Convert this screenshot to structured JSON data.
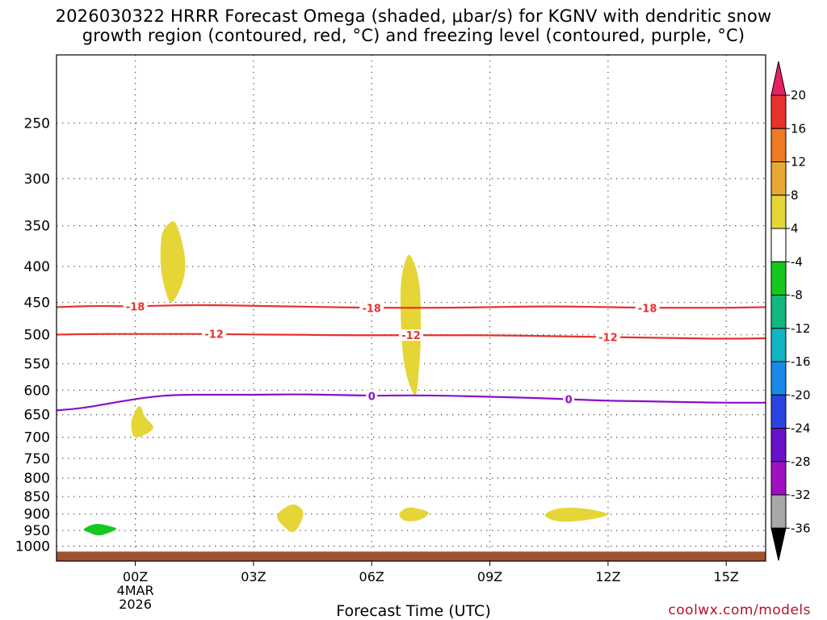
{
  "title": {
    "line1": "2026030322 HRRR Forecast Omega (shaded, μbar/s) for KGNV with dendritic snow",
    "line2": "growth region (contoured, red, °C) and freezing level (contoured, purple, °C)"
  },
  "credit": "coolwx.com/models",
  "chart_data": {
    "type": "contour-time-height",
    "title": "2026030322 HRRR Forecast Omega (shaded, μbar/s) for KGNV with dendritic snow growth region (contoured, red, °C) and freezing level (contoured, purple, °C)",
    "xlabel": "Forecast Time (UTC)",
    "ylabel": "",
    "x_range_hours_from_00Z": [
      -2,
      16
    ],
    "y_range_hpa": [
      200,
      1050
    ],
    "y_ticks": [
      250,
      300,
      350,
      400,
      450,
      500,
      550,
      600,
      650,
      700,
      750,
      800,
      850,
      900,
      950,
      1000
    ],
    "x_ticks": [
      {
        "hour": 0,
        "label": "00Z",
        "sub1": "4MAR",
        "sub2": "2026"
      },
      {
        "hour": 3,
        "label": "03Z"
      },
      {
        "hour": 6,
        "label": "06Z"
      },
      {
        "hour": 9,
        "label": "09Z"
      },
      {
        "hour": 12,
        "label": "12Z"
      },
      {
        "hour": 15,
        "label": "15Z"
      }
    ],
    "contours": [
      {
        "name": "dendritic-minus18",
        "label": "-18",
        "color": "#e8322e",
        "points": [
          [
            -2,
            457
          ],
          [
            -1,
            455
          ],
          [
            0,
            456
          ],
          [
            1,
            454
          ],
          [
            2,
            454
          ],
          [
            3,
            455
          ],
          [
            4,
            456
          ],
          [
            5,
            457
          ],
          [
            6,
            458
          ],
          [
            7,
            458
          ],
          [
            8,
            458
          ],
          [
            9,
            457
          ],
          [
            10,
            456
          ],
          [
            11,
            456
          ],
          [
            12,
            457
          ],
          [
            13,
            458
          ],
          [
            14,
            458
          ],
          [
            15,
            458
          ],
          [
            16,
            457
          ]
        ],
        "label_hours": [
          0,
          6,
          13
        ]
      },
      {
        "name": "dendritic-minus12",
        "label": "-12",
        "color": "#e8322e",
        "points": [
          [
            -2,
            500
          ],
          [
            -1,
            499
          ],
          [
            0,
            499
          ],
          [
            1,
            499
          ],
          [
            2,
            499
          ],
          [
            3,
            500
          ],
          [
            4,
            500
          ],
          [
            5,
            501
          ],
          [
            6,
            501
          ],
          [
            7,
            501
          ],
          [
            8,
            501
          ],
          [
            9,
            501
          ],
          [
            10,
            502
          ],
          [
            11,
            503
          ],
          [
            12,
            504
          ],
          [
            13,
            505
          ],
          [
            14,
            506
          ],
          [
            15,
            507
          ],
          [
            16,
            506
          ]
        ],
        "label_hours": [
          2,
          7,
          12
        ]
      },
      {
        "name": "freezing-level-0",
        "label": "0",
        "color": "#8a10c8",
        "points": [
          [
            -2,
            641
          ],
          [
            -1.3,
            636
          ],
          [
            -0.5,
            624
          ],
          [
            0.3,
            614
          ],
          [
            1,
            609
          ],
          [
            2,
            609
          ],
          [
            3,
            609
          ],
          [
            4,
            608
          ],
          [
            5,
            609
          ],
          [
            6,
            611
          ],
          [
            7,
            610
          ],
          [
            8,
            611
          ],
          [
            9,
            613
          ],
          [
            10,
            615
          ],
          [
            11,
            618
          ],
          [
            12,
            621
          ],
          [
            13,
            622
          ],
          [
            14,
            624
          ],
          [
            15,
            625
          ],
          [
            16,
            625
          ]
        ],
        "label_hours": [
          6,
          11
        ]
      }
    ],
    "shaded_areas": [
      {
        "name": "omega-4-8",
        "color": "#e6d536",
        "points": [
          [
            0.9,
            450
          ],
          [
            0.75,
            430
          ],
          [
            0.65,
            400
          ],
          [
            0.65,
            370
          ],
          [
            0.72,
            355
          ],
          [
            0.95,
            345
          ],
          [
            1.1,
            355
          ],
          [
            1.25,
            385
          ],
          [
            1.25,
            410
          ],
          [
            1.1,
            435
          ]
        ]
      },
      {
        "name": "omega-4-8",
        "color": "#e6d536",
        "points": [
          [
            0.1,
            632
          ],
          [
            -0.1,
            665
          ],
          [
            0,
            700
          ],
          [
            0.45,
            680
          ],
          [
            0.25,
            655
          ]
        ]
      },
      {
        "name": "omega-4-8",
        "color": "#e6d536",
        "points": [
          [
            7.1,
            610
          ],
          [
            6.85,
            560
          ],
          [
            6.75,
            490
          ],
          [
            6.75,
            420
          ],
          [
            6.95,
            385
          ],
          [
            7.2,
            420
          ],
          [
            7.25,
            490
          ],
          [
            7.2,
            560
          ]
        ]
      },
      {
        "name": "omega-4-8",
        "color": "#e6d536",
        "points": [
          [
            3.6,
            910
          ],
          [
            3.7,
            890
          ],
          [
            4.0,
            872
          ],
          [
            4.25,
            890
          ],
          [
            4.2,
            925
          ],
          [
            4.0,
            955
          ],
          [
            3.75,
            935
          ]
        ]
      },
      {
        "name": "omega-4-8",
        "color": "#e6d536",
        "points": [
          [
            6.7,
            900
          ],
          [
            6.9,
            882
          ],
          [
            7.2,
            885
          ],
          [
            7.45,
            897
          ],
          [
            7.2,
            918
          ],
          [
            6.85,
            920
          ]
        ]
      },
      {
        "name": "omega-4-8",
        "color": "#e6d536",
        "points": [
          [
            10.4,
            902
          ],
          [
            10.7,
            885
          ],
          [
            11.2,
            882
          ],
          [
            11.7,
            890
          ],
          [
            12.0,
            902
          ],
          [
            11.6,
            915
          ],
          [
            11.0,
            923
          ],
          [
            10.6,
            918
          ]
        ]
      },
      {
        "name": "omega-minus4-minus8",
        "color": "#16c81e",
        "points": [
          [
            -1.3,
            945
          ],
          [
            -1.0,
            930
          ],
          [
            -0.6,
            938
          ],
          [
            -0.5,
            947
          ],
          [
            -0.9,
            965
          ],
          [
            -1.2,
            955
          ]
        ]
      }
    ],
    "terrain_hpa": 1018,
    "colorbar": {
      "ticks": [
        "20",
        "16",
        "12",
        "8",
        "4",
        "-4",
        "-8",
        "-12",
        "-16",
        "-20",
        "-24",
        "-28",
        "-32",
        "-36"
      ],
      "colors": [
        "#e82060",
        "#e8322e",
        "#ee7a22",
        "#e8a832",
        "#e6d536",
        "#ffffff",
        "#16c81e",
        "#12b880",
        "#12b4c4",
        "#1a8ae8",
        "#2a44e0",
        "#6a10c8",
        "#a010c0",
        "#a8a8a8",
        "#000000"
      ]
    }
  }
}
